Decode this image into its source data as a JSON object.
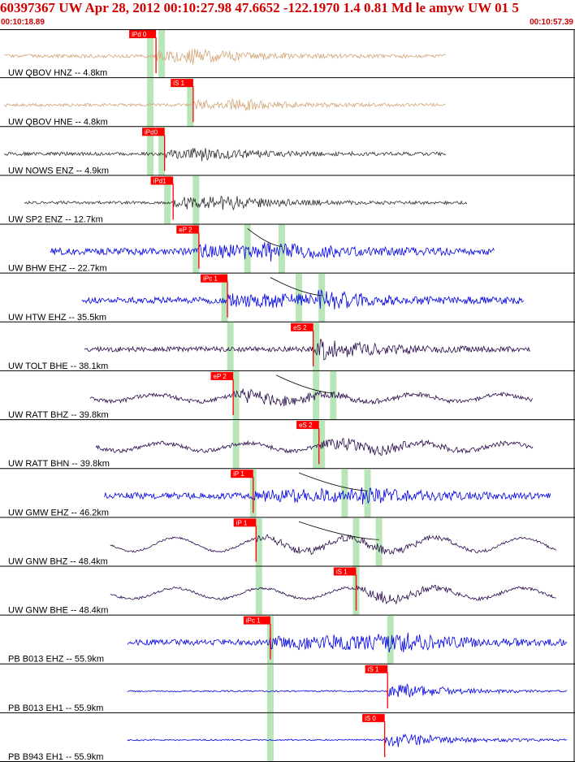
{
  "header": {
    "title": "60397367 UW Apr 28, 2012 00:10:27.98    47.6652 -122.1970  1.4 0.81 Md le amyw UW 01    5",
    "start_time": "00:10:18.89",
    "end_time": "00:10:57.39"
  },
  "chart_data": {
    "type": "seismogram",
    "time_start": "00:10:18.89",
    "time_end": "00:10:57.39",
    "colors": {
      "short_period": "#d2a679",
      "broadband_near": "#303030",
      "vertical": "#0000e6",
      "horizontal": "#2a0a4a",
      "pick": "#ff0000",
      "pick_window": "#b9e6b9",
      "trace_divider": "#000000",
      "title": "#d00000"
    },
    "traces": [
      {
        "label": "UW QBOV HNZ -- 4.8km",
        "style": "short_period",
        "sig_start": 0.005,
        "sig_end": 0.778,
        "amp": 0.07,
        "burst_amp": 0.35,
        "freq": 3.0,
        "pick_label": "iPd 0",
        "pick_t": 0.27,
        "windows": [
          0.26,
          0.28
        ],
        "arrival": 0.27,
        "burst": 0.32
      },
      {
        "label": "UW QBOV HNE -- 4.8km",
        "style": "short_period",
        "sig_start": 0.005,
        "sig_end": 0.778,
        "amp": 0.06,
        "burst_amp": 0.3,
        "freq": 3.0,
        "pick_label": "iS 1",
        "pick_t": 0.335,
        "windows": [
          0.26,
          0.33
        ],
        "arrival": 0.335,
        "burst": 0.38
      },
      {
        "label": "UW NOWS ENZ -- 4.9km",
        "style": "broadband_near",
        "sig_start": 0.005,
        "sig_end": 0.778,
        "amp": 0.07,
        "burst_amp": 0.32,
        "freq": 3.0,
        "pick_label": "iPd0",
        "pick_t": 0.285,
        "windows": [
          0.26,
          0.28
        ],
        "arrival": 0.285,
        "burst": 0.33
      },
      {
        "label": "UW SP2 ENZ -- 12.7km",
        "style": "broadband_near",
        "sig_start": 0.04,
        "sig_end": 0.815,
        "amp": 0.06,
        "burst_amp": 0.42,
        "freq": 3.0,
        "pick_label": "iPd1",
        "pick_t": 0.3,
        "windows": [
          0.29,
          0.34
        ],
        "arrival": 0.3,
        "burst": 0.35
      },
      {
        "label": "UW BHW EHZ -- 22.7km",
        "style": "vertical",
        "sig_start": 0.085,
        "sig_end": 0.862,
        "amp": 0.14,
        "burst_amp": 0.4,
        "freq": 3.0,
        "pick_label": "eP 2",
        "pick_t": 0.345,
        "windows": [
          0.34,
          0.43,
          0.49
        ],
        "arrival": 0.345,
        "burst": 0.45,
        "curve": [
          0.43,
          0.49
        ]
      },
      {
        "label": "UW HTW EHZ -- 35.5km",
        "style": "vertical",
        "sig_start": 0.14,
        "sig_end": 0.915,
        "amp": 0.13,
        "burst_amp": 0.38,
        "freq": 3.0,
        "pick_label": "iPc 1",
        "pick_t": 0.395,
        "windows": [
          0.39,
          0.52,
          0.56
        ],
        "arrival": 0.395,
        "burst": 0.55,
        "curve": [
          0.47,
          0.56
        ]
      },
      {
        "label": "UW TOLT BHE -- 38.1km",
        "style": "horizontal",
        "sig_start": 0.145,
        "sig_end": 0.925,
        "amp": 0.1,
        "burst_amp": 0.45,
        "freq": 3.0,
        "pick_label": "eS 2",
        "pick_t": 0.545,
        "windows": [
          0.4,
          0.55
        ],
        "arrival": 0.545,
        "burst": 0.555
      },
      {
        "label": "UW RATT BHZ -- 39.8km",
        "style": "horizontal",
        "sig_start": 0.155,
        "sig_end": 0.93,
        "amp": 0.08,
        "burst_amp": 0.35,
        "freq": 3.0,
        "pick_label": "eP 2",
        "pick_t": 0.405,
        "windows": [
          0.41,
          0.55,
          0.58
        ],
        "arrival": 0.405,
        "burst": 0.43,
        "swell": 0.18,
        "curve": [
          0.48,
          0.58
        ]
      },
      {
        "label": "UW RATT BHN -- 39.8km",
        "style": "horizontal",
        "sig_start": 0.165,
        "sig_end": 0.93,
        "amp": 0.08,
        "burst_amp": 0.4,
        "freq": 3.0,
        "pick_label": "eS 2",
        "pick_t": 0.555,
        "windows": [
          0.41,
          0.55,
          0.56
        ],
        "arrival": 0.555,
        "burst": 0.58,
        "swell": 0.2
      },
      {
        "label": "UW GMW EHZ -- 46.2km",
        "style": "vertical",
        "sig_start": 0.18,
        "sig_end": 0.96,
        "amp": 0.13,
        "burst_amp": 0.35,
        "freq": 3.0,
        "pick_label": "iP 1",
        "pick_t": 0.44,
        "windows": [
          0.44,
          0.6,
          0.64
        ],
        "arrival": 0.44,
        "burst": 0.62,
        "curve": [
          0.52,
          0.64
        ]
      },
      {
        "label": "UW GNW BHZ -- 48.4km",
        "style": "horizontal",
        "sig_start": 0.19,
        "sig_end": 0.97,
        "amp": 0.04,
        "burst_amp": 0.25,
        "freq": 3.0,
        "pick_label": "iP 1",
        "pick_t": 0.445,
        "windows": [
          0.45,
          0.62,
          0.66
        ],
        "arrival": 0.445,
        "burst": 0.64,
        "swell": 0.35,
        "curve": [
          0.52,
          0.66
        ]
      },
      {
        "label": "UW GNW BHE -- 48.4km",
        "style": "horizontal",
        "sig_start": 0.19,
        "sig_end": 0.97,
        "amp": 0.05,
        "burst_amp": 0.3,
        "freq": 3.0,
        "pick_label": "iS 1",
        "pick_t": 0.62,
        "windows": [
          0.45,
          0.62
        ],
        "arrival": 0.62,
        "burst": 0.64,
        "swell": 0.28
      },
      {
        "label": "PB B013 EHZ -- 55.9km",
        "style": "vertical",
        "sig_start": 0.22,
        "sig_end": 0.99,
        "amp": 0.12,
        "burst_amp": 0.45,
        "freq": 3.0,
        "pick_label": "iPc 1",
        "pick_t": 0.47,
        "windows": [
          0.47,
          0.68
        ],
        "arrival": 0.47,
        "burst": 0.675
      },
      {
        "label": "PB B013 EH1 -- 55.9km",
        "style": "vertical",
        "sig_start": 0.22,
        "sig_end": 0.99,
        "amp": 0.03,
        "burst_amp": 0.4,
        "freq": 3.0,
        "pick_label": "iS 1",
        "pick_t": 0.675,
        "windows": [
          0.47
        ],
        "arrival": 0.675,
        "burst": 0.68
      },
      {
        "label": "PB B943 EH1 -- 55.9km",
        "style": "vertical",
        "sig_start": 0.22,
        "sig_end": 0.99,
        "amp": 0.03,
        "burst_amp": 0.4,
        "freq": 3.0,
        "pick_label": "iS 0",
        "pick_t": 0.67,
        "windows": [
          0.47
        ],
        "arrival": 0.67,
        "burst": 0.675
      }
    ]
  }
}
